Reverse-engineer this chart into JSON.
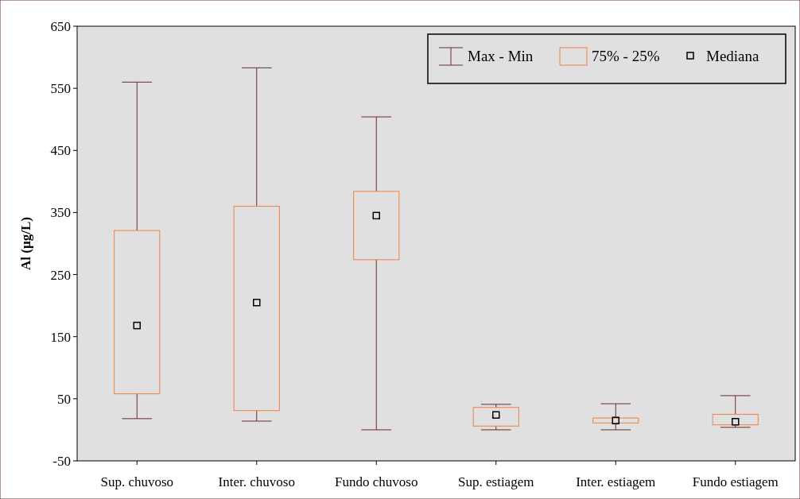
{
  "chart_data": {
    "type": "box",
    "ylabel": "Al (µg/L)",
    "categories": [
      "Sup. chuvoso",
      "Inter. chuvoso",
      "Fundo chuvoso",
      "Sup. estiagem",
      "Inter. estiagem",
      "Fundo estiagem"
    ],
    "ylim": [
      -50,
      650
    ],
    "yticks": [
      -50,
      50,
      150,
      250,
      350,
      450,
      550,
      650
    ],
    "grid": false,
    "legend": "top right",
    "annotations": [
      "Max - Min",
      "Mediana"
    ],
    "series": [
      {
        "name": "75% - 25%",
        "color": "#f08040",
        "boxes": [
          {
            "low": 18,
            "q1": 58,
            "median": 168,
            "q3": 321,
            "high": 560
          },
          {
            "low": 14,
            "q1": 31,
            "median": 205,
            "q3": 360,
            "high": 583
          },
          {
            "low": 0,
            "q1": 274,
            "median": 345,
            "q3": 384,
            "high": 504
          },
          {
            "low": 0,
            "q1": 6,
            "median": 24,
            "q3": 36,
            "high": 41
          },
          {
            "low": 0,
            "q1": 11,
            "median": 15,
            "q3": 19,
            "high": 42
          },
          {
            "low": 4,
            "q1": 8,
            "median": 13,
            "q3": 25,
            "high": 55
          }
        ]
      }
    ]
  }
}
